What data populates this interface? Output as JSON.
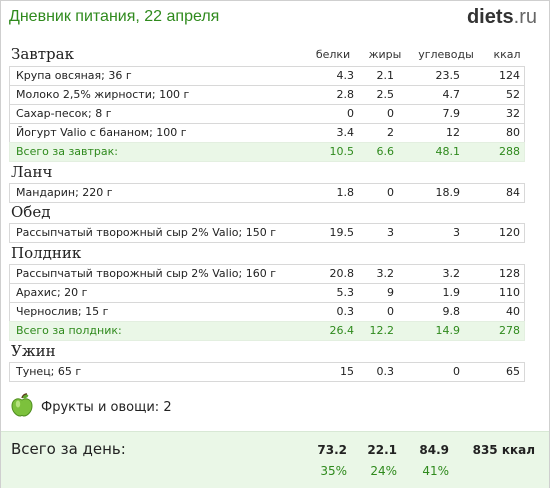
{
  "header": {
    "title": "Дневник питания, 22 апреля",
    "brand": "diets",
    "brand_domain": ".ru"
  },
  "columns": {
    "protein": "белки",
    "fat": "жиры",
    "carbs": "углеводы",
    "kcal": "ккал"
  },
  "sections": {
    "breakfast": {
      "title": "Завтрак",
      "rows": [
        {
          "name": "Крупа овсяная; 36 г",
          "p": "4.3",
          "f": "2.1",
          "c": "23.5",
          "k": "124"
        },
        {
          "name": "Молоко 2,5% жирности; 100 г",
          "p": "2.8",
          "f": "2.5",
          "c": "4.7",
          "k": "52"
        },
        {
          "name": "Сахар-песок; 8 г",
          "p": "0",
          "f": "0",
          "c": "7.9",
          "k": "32"
        },
        {
          "name": "Йогурт Valio с бананом; 100 г",
          "p": "3.4",
          "f": "2",
          "c": "12",
          "k": "80"
        }
      ],
      "total": {
        "name": "Всего за завтрак:",
        "p": "10.5",
        "f": "6.6",
        "c": "48.1",
        "k": "288"
      }
    },
    "lunch": {
      "title": "Ланч",
      "rows": [
        {
          "name": "Мандарин; 220 г",
          "p": "1.8",
          "f": "0",
          "c": "18.9",
          "k": "84"
        }
      ]
    },
    "dinner": {
      "title": "Обед",
      "rows": [
        {
          "name": "Рассыпчатый творожный сыр 2% Valio; 150 г",
          "p": "19.5",
          "f": "3",
          "c": "3",
          "k": "120"
        }
      ]
    },
    "snack": {
      "title": "Полдник",
      "rows": [
        {
          "name": "Рассыпчатый творожный сыр 2% Valio; 160 г",
          "p": "20.8",
          "f": "3.2",
          "c": "3.2",
          "k": "128"
        },
        {
          "name": "Арахис; 20 г",
          "p": "5.3",
          "f": "9",
          "c": "1.9",
          "k": "110"
        },
        {
          "name": "Чернослив; 15 г",
          "p": "0.3",
          "f": "0",
          "c": "9.8",
          "k": "40"
        }
      ],
      "total": {
        "name": "Всего за полдник:",
        "p": "26.4",
        "f": "12.2",
        "c": "14.9",
        "k": "278"
      }
    },
    "supper": {
      "title": "Ужин",
      "rows": [
        {
          "name": "Тунец; 65 г",
          "p": "15",
          "f": "0.3",
          "c": "0",
          "k": "65"
        }
      ]
    }
  },
  "fruits": {
    "label": "Фрукты и овощи:",
    "count": "2",
    "icon": "apple-icon"
  },
  "day_total": {
    "label": "Всего за день:",
    "protein": "73.2",
    "fat": "22.1",
    "carbs": "84.9",
    "kcal": "835 ккал",
    "protein_pct": "35%",
    "fat_pct": "24%",
    "carbs_pct": "41%"
  },
  "colors": {
    "accent_green": "#2f8a1d",
    "total_bg": "#eaf7e7"
  }
}
